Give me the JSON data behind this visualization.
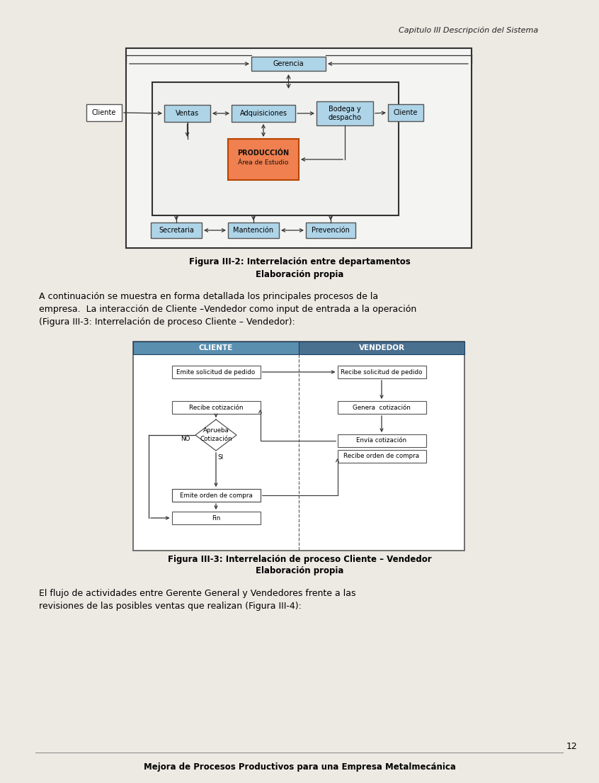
{
  "page_bg": "#ede9e3",
  "header_text": "Capitulo III Descripción del Sistema",
  "fig1_caption_line1": "Figura III-2: Interrelación entre departamentos",
  "fig1_caption_line2": "Elaboración propia",
  "fig2_caption_line1": "Figura III-3: Interrelación de proceso Cliente – Vendedor",
  "fig2_caption_line2": "Elaboración propia",
  "para1_lines": [
    "A continuación se muestra en forma detallada los principales procesos de la",
    "empresa.  La interacción de Cliente –Vendedor como input de entrada a la operación",
    "(Figura III-3: Interrelación de proceso Cliente – Vendedor):"
  ],
  "para2_lines": [
    "El flujo de actividades entre Gerente General y Vendedores frente a las",
    "revisiones de las posibles ventas que realizan (Figura III-4):"
  ],
  "footer_line": "Mejora de Procesos Productivos para una Empresa Metalmecánica",
  "page_number": "12",
  "light_blue": "#aed4e8",
  "medium_blue": "#5a8fb0",
  "dark_blue": "#3a6080",
  "orange_fill": "#f08050",
  "white_fill": "#ffffff",
  "box_border": "#555555",
  "dark_border": "#333333"
}
